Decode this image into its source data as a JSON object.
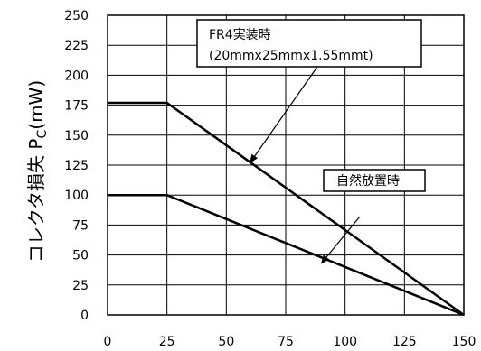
{
  "chart_data": {
    "type": "line",
    "xlabel": "",
    "ylabel": "コレクタ損失 P",
    "ylabel_subscript": "C",
    "ylabel_unit": "(mW)",
    "xlim": [
      0,
      150
    ],
    "ylim": [
      0,
      250
    ],
    "xticks": [
      "0",
      "25",
      "50",
      "75",
      "100",
      "125",
      "150"
    ],
    "yticks": [
      "0",
      "25",
      "50",
      "75",
      "100",
      "125",
      "150",
      "175",
      "200",
      "225",
      "250"
    ],
    "grid": true,
    "series": [
      {
        "x": [
          0,
          25,
          150
        ],
        "y": [
          177,
          177,
          0
        ]
      },
      {
        "x": [
          0,
          25,
          150
        ],
        "y": [
          100,
          100,
          0
        ]
      }
    ],
    "annotations": [
      {
        "lines": [
          "FR4実装時",
          "(20mmx25mmx1.55mmt)"
        ],
        "points_to_series": 0,
        "arrow_target": [
          60,
          127
        ]
      },
      {
        "lines": [
          "自然放置時"
        ],
        "points_to_series": 1,
        "arrow_target": [
          90,
          43
        ]
      }
    ]
  }
}
